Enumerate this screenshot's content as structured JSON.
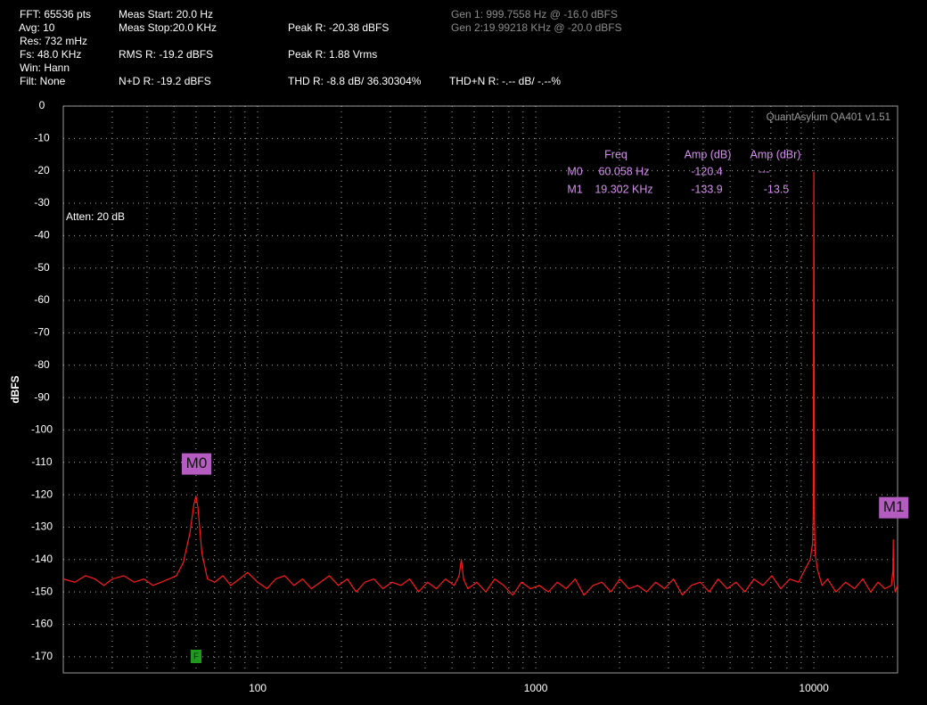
{
  "header": {
    "col1": [
      "FFT: 65536 pts",
      "Avg: 10",
      "Res: 732 mHz",
      "Fs: 48.0 KHz",
      "Win: Hann",
      "Filt: None"
    ],
    "col2": [
      "Meas Start: 20.0 Hz",
      "Meas Stop:20.0 KHz",
      "RMS R: -19.2 dBFS",
      "N+D R: -19.2 dBFS"
    ],
    "col3": [
      "Peak R: -20.38 dBFS",
      "Peak R: 1.88 Vrms",
      "THD R: -8.8 dB/ 36.30304%"
    ],
    "thdn": "THD+N R: -.-- dB/ -.--%",
    "gen": [
      "Gen 1: 999.7558 Hz @ -16.0  dBFS",
      "Gen 2:19.99218 KHz @ -20.0  dBFS"
    ]
  },
  "chart_data": {
    "type": "line",
    "ylabel": "dBFS",
    "watermark": "QuantAsylum QA401 v1.51",
    "annotation": "Atten: 20 dB",
    "filter_marker": "F",
    "log_x": true,
    "grid": true,
    "xlim": [
      20,
      20000
    ],
    "xticks": [
      100,
      1000,
      10000
    ],
    "xgrid": [
      30,
      40,
      50,
      60,
      70,
      80,
      90,
      100,
      200,
      300,
      400,
      500,
      600,
      700,
      800,
      900,
      1000,
      2000,
      3000,
      4000,
      5000,
      6000,
      7000,
      8000,
      9000,
      10000
    ],
    "ylim": [
      -175,
      0
    ],
    "yticks": [
      0,
      -10,
      -20,
      -30,
      -40,
      -50,
      -60,
      -70,
      -80,
      -90,
      -100,
      -110,
      -120,
      -130,
      -140,
      -150,
      -160,
      -170
    ],
    "x": [
      20,
      22,
      24,
      26,
      28,
      30,
      33,
      36,
      39,
      42,
      45,
      48,
      51,
      54,
      57,
      59,
      60,
      61,
      63,
      66,
      70,
      75,
      80,
      86,
      92,
      100,
      108,
      116,
      125,
      135,
      145,
      156,
      168,
      181,
      195,
      210,
      226,
      243,
      262,
      282,
      304,
      327,
      352,
      379,
      408,
      439,
      473,
      509,
      530,
      540,
      550,
      570,
      614,
      661,
      712,
      767,
      826,
      889,
      957,
      1030,
      1110,
      1195,
      1287,
      1386,
      1492,
      1607,
      1730,
      1863,
      2006,
      2160,
      2326,
      2504,
      2697,
      2904,
      3127,
      3367,
      3625,
      3904,
      4204,
      4527,
      4874,
      5249,
      5652,
      6086,
      6553,
      7057,
      7599,
      8183,
      8811,
      9300,
      9700,
      9900,
      9950,
      10000,
      10050,
      10100,
      10300,
      10700,
      11200,
      12000,
      13000,
      14000,
      15000,
      16000,
      17000,
      18000,
      19000,
      19250,
      19302,
      19350,
      19600,
      20000
    ],
    "series": [
      {
        "name": "R",
        "color": "#ff1a1a",
        "values": [
          -146,
          -147,
          -145,
          -146,
          -148,
          -146,
          -145,
          -147,
          -146,
          -148,
          -147,
          -146,
          -145,
          -141,
          -132,
          -123,
          -120.4,
          -124,
          -138,
          -146,
          -147,
          -145,
          -148,
          -146,
          -144,
          -147,
          -149,
          -146,
          -145,
          -148,
          -146,
          -149,
          -147,
          -145,
          -148,
          -146,
          -150,
          -147,
          -146,
          -149,
          -147,
          -148,
          -146,
          -150,
          -147,
          -149,
          -146,
          -148,
          -145,
          -140,
          -146,
          -149,
          -147,
          -150,
          -146,
          -148,
          -151,
          -147,
          -149,
          -148,
          -150,
          -147,
          -149,
          -146,
          -151,
          -148,
          -147,
          -150,
          -146,
          -149,
          -148,
          -150,
          -147,
          -149,
          -146,
          -151,
          -148,
          -147,
          -150,
          -146,
          -149,
          -147,
          -150,
          -146,
          -148,
          -145,
          -149,
          -146,
          -147,
          -143,
          -140,
          -135,
          -125,
          -20.4,
          -128,
          -138,
          -143,
          -148,
          -146,
          -150,
          -147,
          -149,
          -146,
          -150,
          -147,
          -149,
          -148,
          -143,
          -133.9,
          -145,
          -150,
          -148
        ]
      }
    ],
    "markers": [
      {
        "name": "M0",
        "x": 60.058,
        "value": -120.4
      },
      {
        "name": "M1",
        "x": 19302,
        "value": -133.9
      }
    ],
    "marker_table": {
      "columns": [
        "Freq",
        "Amp (dB)",
        "Amp (dBr)"
      ],
      "rows": [
        [
          "60.058 Hz",
          "-120.4",
          "---"
        ],
        [
          "19.302 KHz",
          "-133.9",
          "-13.5"
        ]
      ]
    }
  }
}
